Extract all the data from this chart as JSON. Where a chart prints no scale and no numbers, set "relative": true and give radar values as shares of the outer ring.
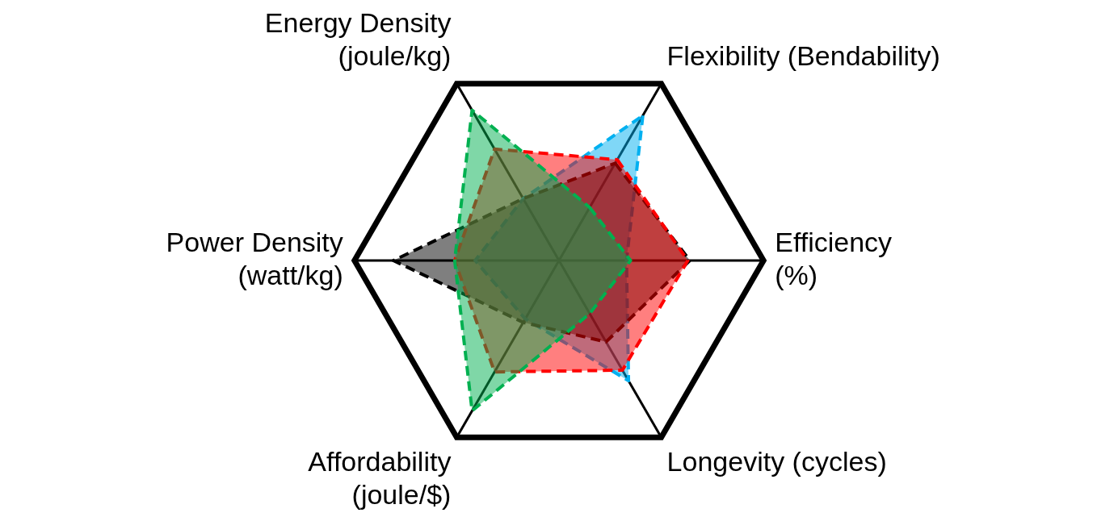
{
  "chart_data": {
    "type": "radar",
    "relative": true,
    "categories": [
      "Flexibility (Bendability)",
      "Efficiency\n(%)",
      "Longevity (cycles)",
      "Affordability\n(joule/$)",
      "Power Density\n(watt/kg)",
      "Energy Density\n(joule/kg)"
    ],
    "series": [
      {
        "color": "#00b050",
        "values": [
          0.3,
          0.35,
          0.3,
          0.85,
          0.51,
          0.85
        ]
      },
      {
        "color": "#ff0000",
        "values": [
          0.57,
          0.63,
          0.62,
          0.63,
          0.51,
          0.63
        ]
      },
      {
        "color": "#000000",
        "values": [
          0.55,
          0.64,
          0.46,
          0.35,
          0.81,
          0.35
        ]
      },
      {
        "color": "#00b0f0",
        "values": [
          0.82,
          0.33,
          0.68,
          0.33,
          0.41,
          0.35
        ]
      }
    ],
    "marker": "none",
    "line_style": "dashed",
    "legend": false
  }
}
